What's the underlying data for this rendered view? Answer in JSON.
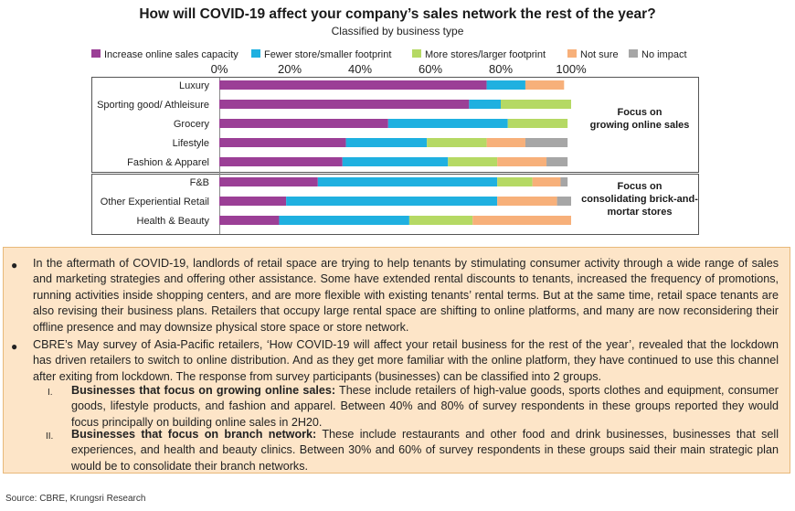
{
  "chart_data": {
    "type": "bar",
    "stacked": true,
    "orientation": "horizontal",
    "title": "How will COVID-19 affect your company’s sales network the rest of the year?",
    "subtitle": "Classified by business type",
    "xlim": [
      0,
      100
    ],
    "x_ticks": [
      "0%",
      "20%",
      "40%",
      "60%",
      "80%",
      "100%"
    ],
    "legend_position": "top",
    "categories": [
      "Luxury",
      "Sporting good/ Athleisure",
      "Grocery",
      "Lifestyle",
      "Fashion & Apparel",
      "F&B",
      "Other Experiential Retail",
      "Health &  Beauty"
    ],
    "series": [
      {
        "name": "Increase online sales capacity",
        "color": "#9b3f96",
        "values": [
          76,
          71,
          48,
          36,
          35,
          28,
          19,
          17
        ]
      },
      {
        "name": "Fewer store/smaller footprint",
        "color": "#1fb0e0",
        "values": [
          11,
          9,
          34,
          23,
          30,
          51,
          60,
          37
        ]
      },
      {
        "name": "More stores/larger footprint",
        "color": "#b5d964",
        "values": [
          0,
          20,
          17,
          17,
          14,
          10,
          0,
          18
        ]
      },
      {
        "name": "Not sure",
        "color": "#f7b07a",
        "values": [
          11,
          0,
          0,
          11,
          14,
          8,
          17,
          28
        ]
      },
      {
        "name": "No impact",
        "color": "#a6a6a6",
        "values": [
          0,
          0,
          0,
          12,
          6,
          2,
          4,
          0
        ]
      }
    ],
    "groups": [
      {
        "label_lines": [
          "Focus on",
          "growing online sales"
        ]
      },
      {
        "label_lines": [
          "Focus on",
          "consolidating brick-and-",
          "mortar stores"
        ]
      }
    ]
  },
  "text": {
    "bullet1": "In the aftermath of COVID-19, landlords of retail space are trying to help tenants by stimulating consumer activity through a wide range of sales and marketing strategies and offering other assistance. Some have extended rental discounts to tenants, increased the frequency of promotions, running activities inside shopping centers, and are more flexible with existing tenants’ rental terms. But at the same time, retail space tenants are also revising their business plans. Retailers that occupy large rental space are shifting to online platforms, and many are now reconsidering their offline presence and may downsize physical store space or store network.",
    "bullet2": "CBRE’s May survey of Asia-Pacific retailers, ‘How COVID-19 will affect your retail business for the rest of the year’, revealed that the lockdown has driven retailers to switch to online distribution. And as they get more familiar with the online platform, they have continued to use this channel after exiting from lockdown. The response from survey participants (businesses) can be classified into 2 groups.",
    "sub1_num": "I.",
    "sub1_bold": "Businesses that focus on growing online sales:",
    "sub1_text": " These include retailers of high-value goods, sports clothes and equipment, consumer goods, lifestyle products, and fashion and apparel. Between 40% and 80% of survey respondents in these groups reported they would focus principally on building online sales in 2H20.",
    "sub2_num": "II.",
    "sub2_bold": "Businesses that focus on branch network:",
    "sub2_text": " These include restaurants and other food and drink businesses, businesses that sell experiences, and health and beauty clinics. Between 30% and 60% of survey respondents in these groups said their main strategic plan would be to consolidate their branch networks.",
    "source": "Source: CBRE, Krungsri Research"
  }
}
